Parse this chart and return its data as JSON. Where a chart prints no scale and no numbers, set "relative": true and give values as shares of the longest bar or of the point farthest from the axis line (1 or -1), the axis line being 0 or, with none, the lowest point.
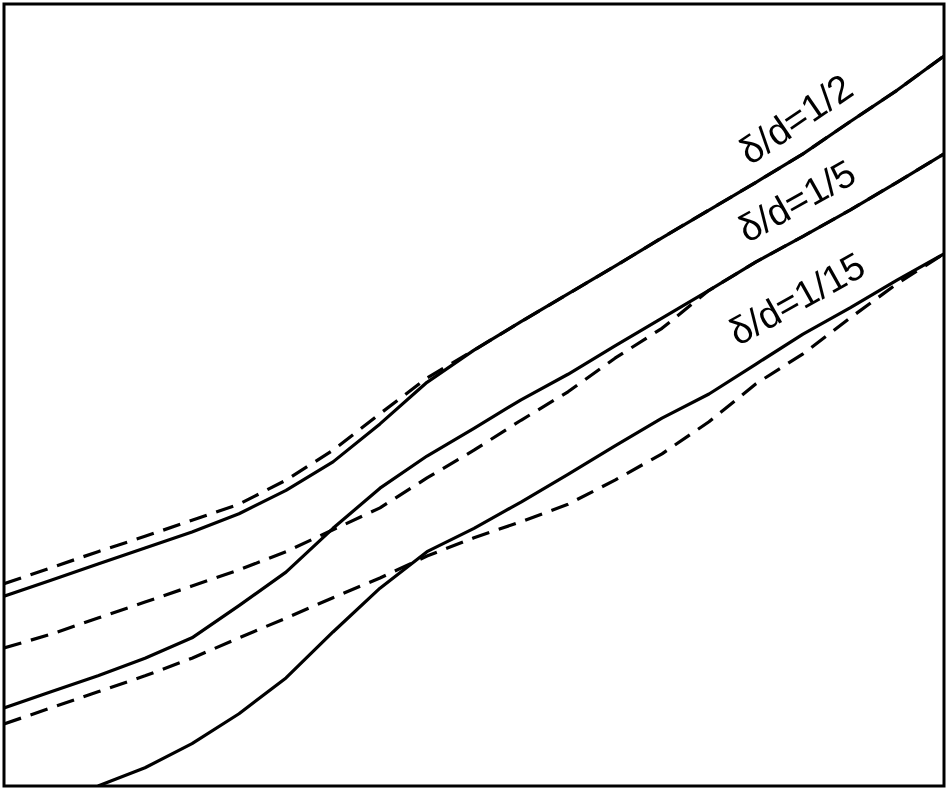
{
  "chart_data": {
    "type": "line",
    "relative": true,
    "categories": [
      null,
      null,
      null,
      null,
      null,
      null,
      null,
      null,
      null,
      null,
      null,
      null,
      null,
      null,
      null,
      null,
      null,
      null,
      null,
      null,
      null
    ],
    "series": [
      {
        "name": "δ/d=1/2",
        "color": "#000000",
        "line_style": "solid",
        "values": [
          0.26,
          0.282,
          0.304,
          0.326,
          0.348,
          0.373,
          0.405,
          0.444,
          0.496,
          0.553,
          0.597,
          0.636,
          0.674,
          0.712,
          0.751,
          0.789,
          0.827,
          0.866,
          0.91,
          0.953,
          1
        ]
      },
      {
        "color": "#000000",
        "line_style": "dashed",
        "values": [
          0.277,
          0.299,
          0.321,
          0.342,
          0.364,
          0.386,
          0.419,
          0.46,
          0.51,
          0.559,
          0.597,
          0.636,
          0.674,
          0.712,
          0.751,
          0.789,
          0.827,
          0.866,
          0.91,
          0.953,
          1
        ]
      },
      {
        "name": "δ/d=1/5",
        "color": "#000000",
        "line_style": "solid",
        "values": [
          0.107,
          0.129,
          0.151,
          0.175,
          0.203,
          0.247,
          0.293,
          0.353,
          0.408,
          0.452,
          0.49,
          0.529,
          0.564,
          0.603,
          0.641,
          0.679,
          0.718,
          0.753,
          0.789,
          0.827,
          0.866
        ]
      },
      {
        "color": "#000000",
        "line_style": "dashed",
        "values": [
          0.189,
          0.208,
          0.23,
          0.252,
          0.274,
          0.296,
          0.321,
          0.351,
          0.381,
          0.422,
          0.46,
          0.501,
          0.54,
          0.586,
          0.627,
          0.679,
          0.718,
          0.753,
          0.789,
          0.827,
          0.866
        ]
      },
      {
        "name": "δ/d=1/15",
        "color": "#000000",
        "line_style": "solid",
        "values": [
          null,
          null,
          0.0,
          0.025,
          0.058,
          0.099,
          0.148,
          0.211,
          0.271,
          0.321,
          0.353,
          0.389,
          0.427,
          0.466,
          0.504,
          0.537,
          0.578,
          0.619,
          0.655,
          0.693,
          0.729
        ]
      },
      {
        "color": "#000000",
        "line_style": "dashed",
        "values": [
          0.085,
          0.107,
          0.129,
          0.151,
          0.175,
          0.203,
          0.23,
          0.258,
          0.285,
          0.315,
          0.34,
          0.362,
          0.386,
          0.419,
          0.455,
          0.499,
          0.551,
          0.592,
          0.641,
          0.688,
          0.729
        ]
      }
    ]
  }
}
